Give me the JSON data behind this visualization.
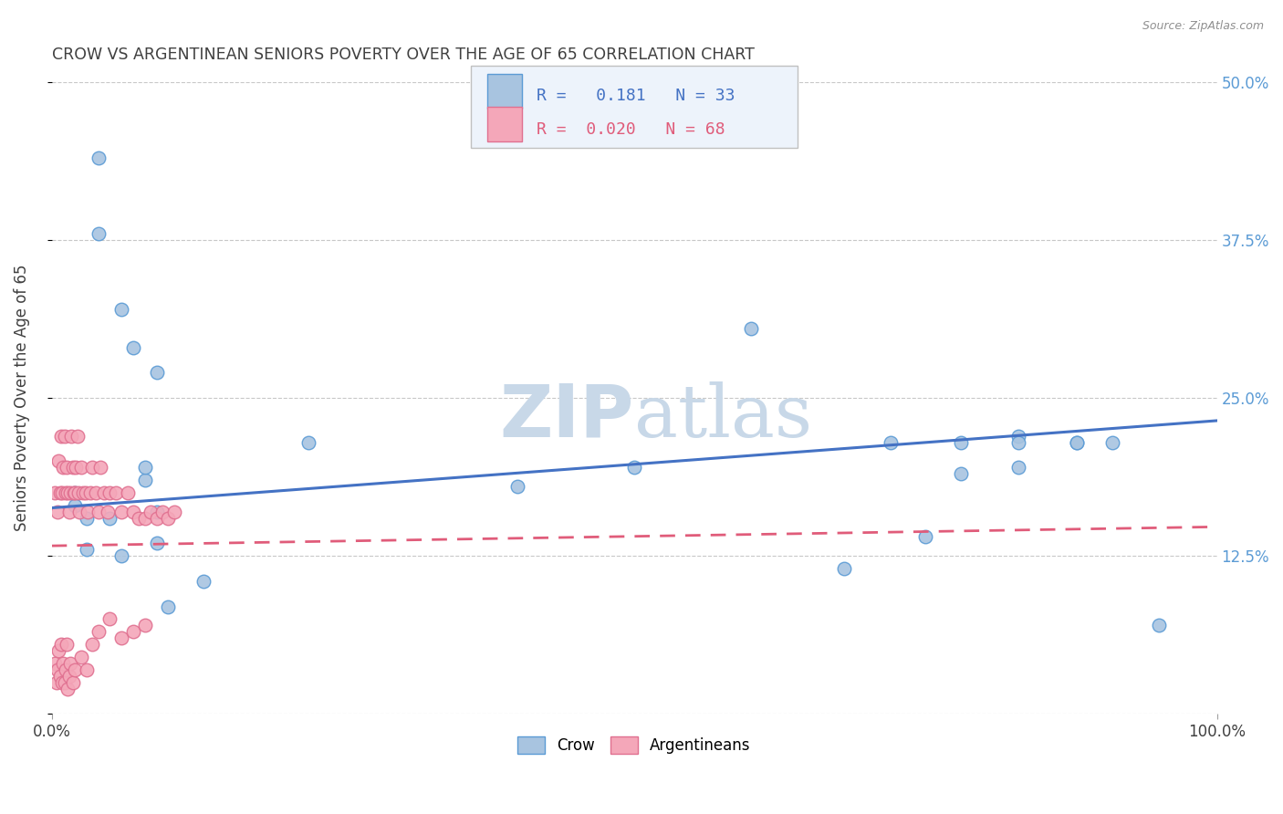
{
  "title": "CROW VS ARGENTINEAN SENIORS POVERTY OVER THE AGE OF 65 CORRELATION CHART",
  "source": "Source: ZipAtlas.com",
  "ylabel": "Seniors Poverty Over the Age of 65",
  "xlim": [
    0,
    1.0
  ],
  "ylim": [
    0,
    0.5
  ],
  "ytick_positions": [
    0.0,
    0.125,
    0.25,
    0.375,
    0.5
  ],
  "yticklabels": [
    "",
    "12.5%",
    "25.0%",
    "37.5%",
    "50.0%"
  ],
  "crow_color": "#a8c4e0",
  "crow_edge_color": "#5b9bd5",
  "argentinean_color": "#f4a7b9",
  "argentinean_edge_color": "#e07090",
  "crow_R": "0.181",
  "crow_N": "33",
  "argentinean_R": "0.020",
  "argentinean_N": "68",
  "crow_scatter_x": [
    0.02,
    0.04,
    0.06,
    0.07,
    0.09,
    0.02,
    0.03,
    0.05,
    0.08,
    0.1,
    0.13,
    0.22,
    0.4,
    0.5,
    0.6,
    0.72,
    0.78,
    0.83,
    0.88,
    0.91,
    0.95,
    0.03,
    0.06,
    0.09,
    0.68,
    0.75,
    0.83,
    0.88,
    0.04,
    0.08,
    0.09,
    0.78,
    0.83
  ],
  "crow_scatter_y": [
    0.175,
    0.44,
    0.32,
    0.29,
    0.27,
    0.165,
    0.155,
    0.155,
    0.185,
    0.085,
    0.105,
    0.215,
    0.18,
    0.195,
    0.305,
    0.215,
    0.215,
    0.22,
    0.215,
    0.215,
    0.07,
    0.13,
    0.125,
    0.135,
    0.115,
    0.14,
    0.195,
    0.215,
    0.38,
    0.195,
    0.16,
    0.19,
    0.215
  ],
  "argentinean_scatter_x": [
    0.003,
    0.005,
    0.006,
    0.007,
    0.008,
    0.009,
    0.01,
    0.011,
    0.012,
    0.013,
    0.014,
    0.015,
    0.016,
    0.017,
    0.018,
    0.019,
    0.02,
    0.021,
    0.022,
    0.023,
    0.024,
    0.025,
    0.027,
    0.029,
    0.031,
    0.033,
    0.035,
    0.038,
    0.04,
    0.042,
    0.045,
    0.048,
    0.05,
    0.055,
    0.06,
    0.065,
    0.07,
    0.075,
    0.08,
    0.085,
    0.09,
    0.095,
    0.1,
    0.105,
    0.003,
    0.004,
    0.005,
    0.006,
    0.007,
    0.008,
    0.009,
    0.01,
    0.011,
    0.012,
    0.013,
    0.014,
    0.015,
    0.016,
    0.018,
    0.02,
    0.025,
    0.03,
    0.035,
    0.04,
    0.05,
    0.06,
    0.07,
    0.08
  ],
  "argentinean_scatter_y": [
    0.175,
    0.16,
    0.2,
    0.175,
    0.22,
    0.175,
    0.195,
    0.22,
    0.175,
    0.195,
    0.175,
    0.16,
    0.175,
    0.22,
    0.195,
    0.175,
    0.175,
    0.195,
    0.22,
    0.175,
    0.16,
    0.195,
    0.175,
    0.175,
    0.16,
    0.175,
    0.195,
    0.175,
    0.16,
    0.195,
    0.175,
    0.16,
    0.175,
    0.175,
    0.16,
    0.175,
    0.16,
    0.155,
    0.155,
    0.16,
    0.155,
    0.16,
    0.155,
    0.16,
    0.04,
    0.025,
    0.035,
    0.05,
    0.03,
    0.055,
    0.025,
    0.04,
    0.025,
    0.035,
    0.055,
    0.02,
    0.03,
    0.04,
    0.025,
    0.035,
    0.045,
    0.035,
    0.055,
    0.065,
    0.075,
    0.06,
    0.065,
    0.07
  ],
  "crow_line_color": "#4472c4",
  "argentinean_line_color": "#e05c7a",
  "crow_line_x": [
    0.0,
    1.0
  ],
  "crow_line_y": [
    0.163,
    0.232
  ],
  "argentinean_line_x": [
    0.0,
    1.0
  ],
  "argentinean_line_y": [
    0.133,
    0.148
  ],
  "watermark_zip": "ZIP",
  "watermark_atlas": "atlas",
  "watermark_color": "#c8d8e8",
  "background_color": "#ffffff",
  "grid_color": "#c8c8c8",
  "title_color": "#404040",
  "axis_label_color": "#404040",
  "tick_label_color_right": "#5b9bd5",
  "legend_box_color": "#edf3fb",
  "legend_border_color": "#c0c0c0",
  "legend_text_color": "#4472c4"
}
